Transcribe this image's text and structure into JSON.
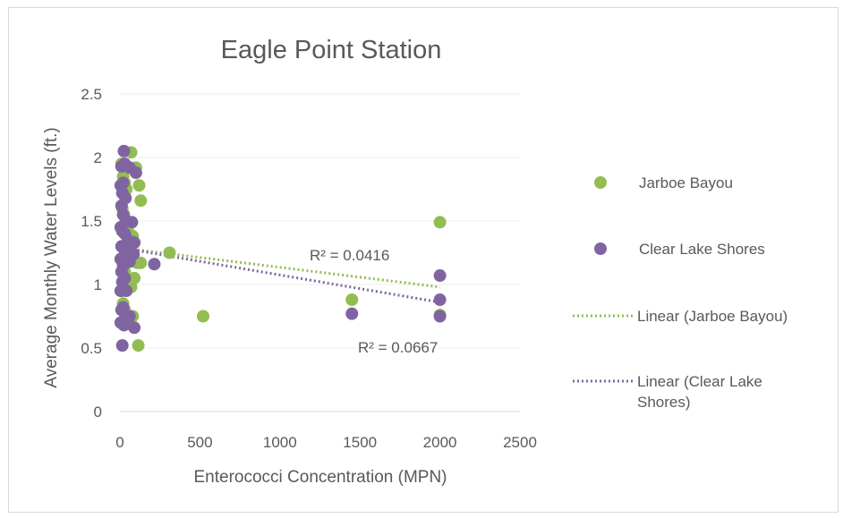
{
  "chart_data": {
    "type": "scatter",
    "title": "Eagle Point Station",
    "xlabel": "Enterococci Concentration (MPN)",
    "ylabel": "Average Monthly Water Levels (ft.)",
    "xlim": [
      0,
      2500
    ],
    "ylim": [
      0,
      2.5
    ],
    "x_ticks": [
      "0",
      "500",
      "1000",
      "1500",
      "2000",
      "2500"
    ],
    "y_ticks": [
      "0",
      "0.5",
      "1",
      "1.5",
      "2",
      "2.5"
    ],
    "grid": "horizontal",
    "legend_position": "right",
    "series": [
      {
        "name": "Jarboe Bayou",
        "color": "#92bd52",
        "points": [
          [
            10,
            1.95
          ],
          [
            20,
            1.85
          ],
          [
            30,
            1.8
          ],
          [
            40,
            1.75
          ],
          [
            70,
            2.04
          ],
          [
            100,
            1.92
          ],
          [
            120,
            1.78
          ],
          [
            130,
            1.66
          ],
          [
            15,
            1.6
          ],
          [
            25,
            1.55
          ],
          [
            35,
            1.5
          ],
          [
            45,
            1.42
          ],
          [
            60,
            1.4
          ],
          [
            80,
            1.38
          ],
          [
            20,
            1.3
          ],
          [
            40,
            1.25
          ],
          [
            60,
            1.2
          ],
          [
            90,
            1.18
          ],
          [
            110,
            1.17
          ],
          [
            130,
            1.17
          ],
          [
            30,
            1.1
          ],
          [
            50,
            1.05
          ],
          [
            90,
            1.05
          ],
          [
            10,
            0.95
          ],
          [
            40,
            0.97
          ],
          [
            70,
            0.98
          ],
          [
            20,
            0.85
          ],
          [
            30,
            0.8
          ],
          [
            50,
            0.75
          ],
          [
            80,
            0.75
          ],
          [
            60,
            0.7
          ],
          [
            115,
            0.52
          ],
          [
            310,
            1.25
          ],
          [
            520,
            0.75
          ],
          [
            1450,
            0.88
          ],
          [
            2000,
            1.49
          ],
          [
            2000,
            0.76
          ]
        ],
        "trendline": {
          "name": "Linear (Jarboe Bayou)",
          "x": [
            0,
            2000
          ],
          "y": [
            1.29,
            0.98
          ],
          "r2_label": "R² = 0.0416"
        }
      },
      {
        "name": "Clear Lake Shores",
        "color": "#8064a2",
        "points": [
          [
            25,
            2.05
          ],
          [
            10,
            1.93
          ],
          [
            30,
            1.95
          ],
          [
            60,
            1.92
          ],
          [
            100,
            1.88
          ],
          [
            20,
            1.8
          ],
          [
            5,
            1.78
          ],
          [
            15,
            1.72
          ],
          [
            35,
            1.68
          ],
          [
            10,
            1.62
          ],
          [
            20,
            1.55
          ],
          [
            40,
            1.5
          ],
          [
            75,
            1.49
          ],
          [
            5,
            1.45
          ],
          [
            15,
            1.42
          ],
          [
            30,
            1.4
          ],
          [
            50,
            1.35
          ],
          [
            90,
            1.33
          ],
          [
            10,
            1.3
          ],
          [
            25,
            1.28
          ],
          [
            45,
            1.25
          ],
          [
            85,
            1.24
          ],
          [
            5,
            1.2
          ],
          [
            20,
            1.15
          ],
          [
            60,
            1.18
          ],
          [
            215,
            1.16
          ],
          [
            10,
            1.1
          ],
          [
            30,
            1.05
          ],
          [
            15,
            1.02
          ],
          [
            5,
            0.95
          ],
          [
            40,
            0.95
          ],
          [
            20,
            0.82
          ],
          [
            10,
            0.8
          ],
          [
            35,
            0.75
          ],
          [
            60,
            0.75
          ],
          [
            5,
            0.7
          ],
          [
            25,
            0.68
          ],
          [
            90,
            0.66
          ],
          [
            15,
            0.52
          ],
          [
            1450,
            0.77
          ],
          [
            2000,
            1.07
          ],
          [
            2000,
            0.88
          ],
          [
            2000,
            0.75
          ]
        ],
        "trendline": {
          "name": "Linear (Clear Lake Shores)",
          "x": [
            0,
            2000
          ],
          "y": [
            1.29,
            0.86
          ],
          "r2_label": "R² = 0.0667"
        }
      }
    ]
  }
}
